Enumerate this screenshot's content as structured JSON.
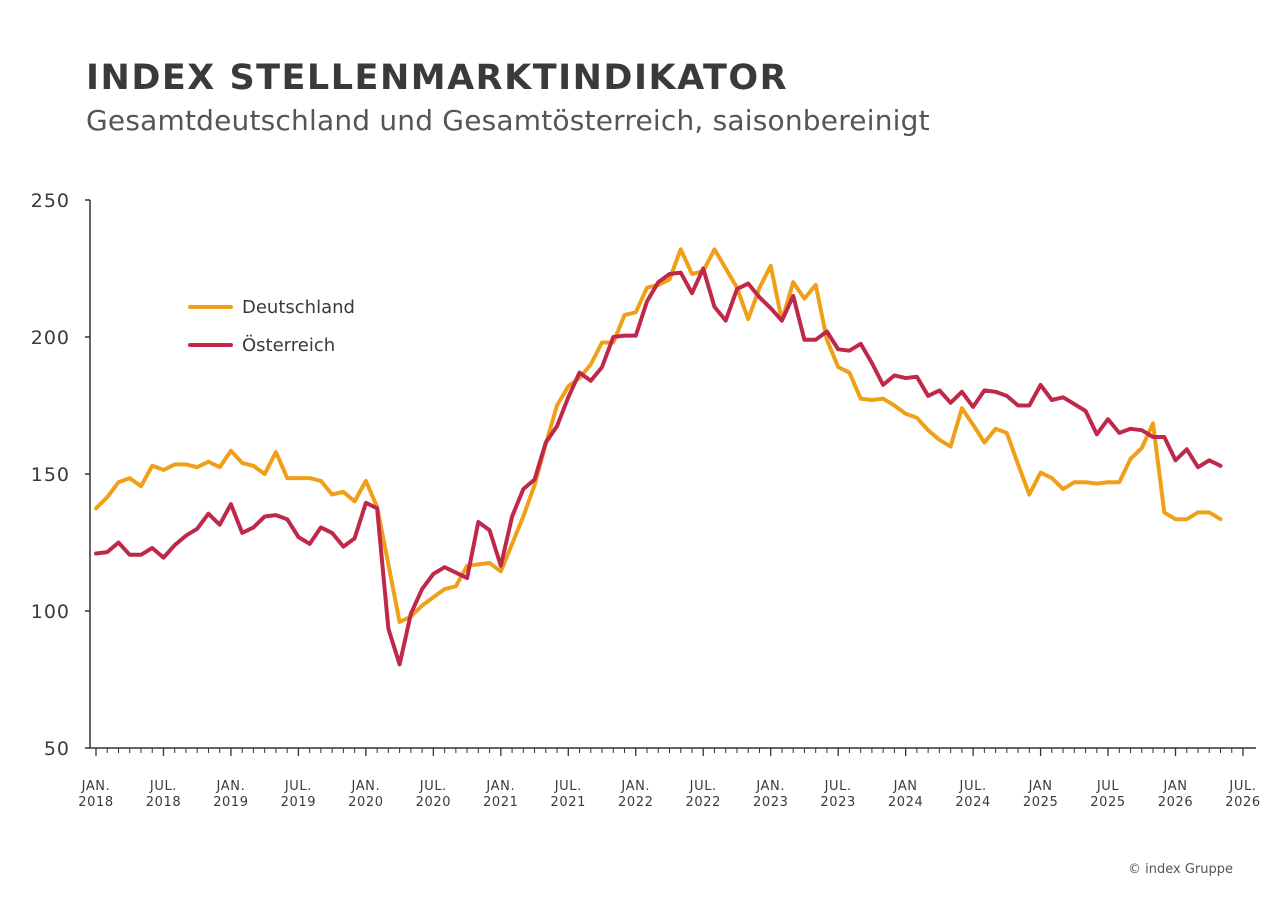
{
  "header": {
    "title": "INDEX STELLENMARKTINDIKATOR",
    "subtitle": "Gesamtdeutschland und Gesamtösterreich, saisonbereinigt"
  },
  "footer": {
    "credit": "© index Gruppe"
  },
  "colors": {
    "deutschland": "#f0a018",
    "oesterreich": "#c0284a",
    "axis": "#333333",
    "text": "#3a3a3a"
  },
  "chart_data": {
    "type": "line",
    "title": "INDEX STELLENMARKTINDIKATOR",
    "subtitle": "Gesamtdeutschland und Gesamtösterreich, saisonbereinigt",
    "ylim": [
      50,
      250
    ],
    "yticks": [
      50,
      100,
      150,
      200,
      250
    ],
    "grid": false,
    "legend_position": "top-left",
    "x_start": "2018-01",
    "x_end": "2026-07",
    "xtick_labels": [
      [
        "JAN.",
        "2018"
      ],
      [
        "JUL.",
        "2018"
      ],
      [
        "JAN.",
        "2019"
      ],
      [
        "JUL.",
        "2019"
      ],
      [
        "JAN.",
        "2020"
      ],
      [
        "JUL.",
        "2020"
      ],
      [
        "JAN.",
        "2021"
      ],
      [
        "JUL.",
        "2021"
      ],
      [
        "JAN.",
        "2022"
      ],
      [
        "JUL.",
        "2022"
      ],
      [
        "JAN.",
        "2023"
      ],
      [
        "JUL.",
        "2023"
      ],
      [
        "JAN",
        "2024"
      ],
      [
        "JUL.",
        "2024"
      ],
      [
        "JAN",
        "2025"
      ],
      [
        "JUL",
        "2025"
      ],
      [
        "JAN",
        "2026"
      ],
      [
        "JUL.",
        "2026"
      ]
    ],
    "series": [
      {
        "name": "Deutschland",
        "color": "#f0a018",
        "values": [
          137.5,
          141.5,
          147,
          148.5,
          145.5,
          153,
          151.5,
          153.5,
          153.5,
          152.5,
          154.5,
          152.5,
          158.5,
          154,
          153,
          150,
          158,
          148.5,
          148.5,
          148.5,
          147.5,
          142.5,
          143.5,
          140,
          147.5,
          138,
          117,
          96,
          98,
          102,
          105,
          108,
          109,
          116.5,
          117,
          117.5,
          114.5,
          124.5,
          134.5,
          146,
          161,
          175,
          182,
          185,
          190,
          198,
          198,
          208,
          209,
          218,
          219,
          221,
          232,
          223,
          224,
          232,
          225,
          218,
          206.5,
          218,
          226,
          206,
          220,
          214,
          219,
          199,
          189,
          187,
          177.5,
          177,
          177.5,
          175,
          172,
          170.5,
          166,
          162.5,
          160,
          174,
          168,
          161.5,
          166.5,
          165,
          153.5,
          142.5,
          150.5,
          148.5,
          144.5,
          147,
          147,
          146.5,
          147,
          147,
          155.5,
          159.5,
          168.5,
          136,
          133.5,
          133.5,
          136,
          136,
          133.5
        ]
      },
      {
        "name": "Österreich",
        "color": "#c0284a",
        "values": [
          121,
          121.5,
          125,
          120.5,
          120.5,
          123,
          119.5,
          124,
          127.5,
          130,
          135.5,
          131.5,
          139,
          128.5,
          130.5,
          134.5,
          135,
          133.5,
          127,
          124.5,
          130.5,
          128.5,
          123.5,
          126.5,
          139.5,
          137.5,
          93.5,
          80.5,
          99,
          108,
          113.5,
          116,
          114,
          112,
          132.5,
          129.5,
          116.5,
          134.5,
          144.5,
          148,
          161.5,
          167.5,
          178,
          187,
          184,
          189,
          200,
          200.5,
          200.5,
          213,
          220,
          223,
          223.5,
          216,
          225,
          211,
          206,
          217.5,
          219.5,
          214.5,
          210.5,
          206,
          215,
          199,
          199,
          202,
          195.5,
          195,
          197.5,
          190.5,
          182.5,
          186,
          185,
          185.5,
          178.5,
          180.5,
          176,
          180,
          174.5,
          180.5,
          180,
          178.5,
          175,
          175,
          182.5,
          177,
          178,
          175.5,
          173,
          164.5,
          170,
          165,
          166.5,
          166,
          163.5,
          163.5,
          155,
          159,
          152.5,
          155,
          153
        ]
      }
    ]
  }
}
